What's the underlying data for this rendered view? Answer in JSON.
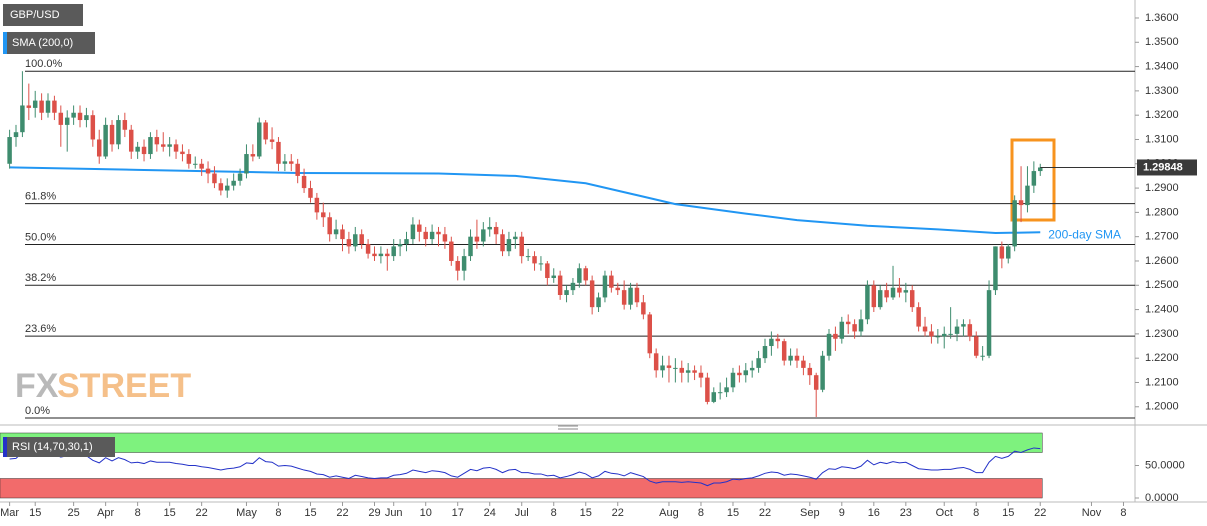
{
  "chart_data": {
    "type": "candlestick",
    "title": "GBP/USD",
    "up_color": "#3e8c6e",
    "down_color": "#dc5048",
    "xlim": [
      -1.5,
      175.8
    ],
    "ylim": [
      1.1925,
      1.3674
    ],
    "yticks": [
      {
        "value": 1.36,
        "label": "1.3600"
      },
      {
        "value": 1.35,
        "label": "1.3500"
      },
      {
        "value": 1.34,
        "label": "1.3400"
      },
      {
        "value": 1.33,
        "label": "1.3300"
      },
      {
        "value": 1.32,
        "label": "1.3200"
      },
      {
        "value": 1.31,
        "label": "1.3100"
      },
      {
        "value": 1.3,
        "label": "1.3000"
      },
      {
        "value": 1.29,
        "label": "1.2900"
      },
      {
        "value": 1.28,
        "label": "1.2800"
      },
      {
        "value": 1.27,
        "label": "1.2700"
      },
      {
        "value": 1.26,
        "label": "1.2600"
      },
      {
        "value": 1.25,
        "label": "1.2500"
      },
      {
        "value": 1.24,
        "label": "1.2400"
      },
      {
        "value": 1.23,
        "label": "1.2300"
      },
      {
        "value": 1.22,
        "label": "1.2200"
      },
      {
        "value": 1.21,
        "label": "1.2100"
      },
      {
        "value": 1.2,
        "label": "1.2000"
      }
    ],
    "xticks": [
      {
        "value": 0,
        "label": "Mar"
      },
      {
        "value": 4,
        "label": "15"
      },
      {
        "value": 10,
        "label": "25"
      },
      {
        "value": 15,
        "label": "Apr"
      },
      {
        "value": 20,
        "label": "8"
      },
      {
        "value": 25,
        "label": "15"
      },
      {
        "value": 30,
        "label": "22"
      },
      {
        "value": 37,
        "label": "May"
      },
      {
        "value": 42,
        "label": "8"
      },
      {
        "value": 47,
        "label": "15"
      },
      {
        "value": 52,
        "label": "22"
      },
      {
        "value": 57,
        "label": "29"
      },
      {
        "value": 60,
        "label": "Jun"
      },
      {
        "value": 65,
        "label": "10"
      },
      {
        "value": 70,
        "label": "17"
      },
      {
        "value": 75,
        "label": "24"
      },
      {
        "value": 80,
        "label": "Jul"
      },
      {
        "value": 85,
        "label": "8"
      },
      {
        "value": 90,
        "label": "15"
      },
      {
        "value": 95,
        "label": "22"
      },
      {
        "value": 103,
        "label": "Aug"
      },
      {
        "value": 108,
        "label": "8"
      },
      {
        "value": 113,
        "label": "15"
      },
      {
        "value": 118,
        "label": "22"
      },
      {
        "value": 125,
        "label": "Sep"
      },
      {
        "value": 130,
        "label": "9"
      },
      {
        "value": 135,
        "label": "16"
      },
      {
        "value": 140,
        "label": "23"
      },
      {
        "value": 146,
        "label": "Oct"
      },
      {
        "value": 151,
        "label": "8"
      },
      {
        "value": 156,
        "label": "15"
      },
      {
        "value": 161,
        "label": "22"
      },
      {
        "value": 169,
        "label": "Nov"
      },
      {
        "value": 174,
        "label": "8"
      }
    ],
    "last_price": 1.29848,
    "grid": false,
    "ohlc": [
      [
        1.3,
        1.314,
        1.298,
        1.311
      ],
      [
        1.311,
        1.316,
        1.307,
        1.313
      ],
      [
        1.313,
        1.3381,
        1.311,
        1.324
      ],
      [
        1.324,
        1.333,
        1.318,
        1.323
      ],
      [
        1.323,
        1.33,
        1.319,
        1.326
      ],
      [
        1.326,
        1.329,
        1.318,
        1.321
      ],
      [
        1.321,
        1.329,
        1.319,
        1.326
      ],
      [
        1.326,
        1.328,
        1.318,
        1.321
      ],
      [
        1.321,
        1.324,
        1.307,
        1.316
      ],
      [
        1.316,
        1.322,
        1.305,
        1.319
      ],
      [
        1.319,
        1.324,
        1.316,
        1.321
      ],
      [
        1.321,
        1.324,
        1.315,
        1.318
      ],
      [
        1.318,
        1.323,
        1.315,
        1.32
      ],
      [
        1.32,
        1.322,
        1.307,
        1.31
      ],
      [
        1.31,
        1.314,
        1.3,
        1.303
      ],
      [
        1.303,
        1.319,
        1.302,
        1.316
      ],
      [
        1.316,
        1.318,
        1.305,
        1.308
      ],
      [
        1.308,
        1.32,
        1.306,
        1.318
      ],
      [
        1.318,
        1.321,
        1.311,
        1.314
      ],
      [
        1.314,
        1.316,
        1.302,
        1.305
      ],
      [
        1.305,
        1.309,
        1.302,
        1.307
      ],
      [
        1.307,
        1.31,
        1.301,
        1.304
      ],
      [
        1.304,
        1.313,
        1.302,
        1.311
      ],
      [
        1.311,
        1.314,
        1.305,
        1.308
      ],
      [
        1.308,
        1.313,
        1.305,
        1.307
      ],
      [
        1.307,
        1.311,
        1.303,
        1.308
      ],
      [
        1.308,
        1.31,
        1.302,
        1.305
      ],
      [
        1.305,
        1.308,
        1.301,
        1.304
      ],
      [
        1.304,
        1.306,
        1.298,
        1.3
      ],
      [
        1.3,
        1.303,
        1.298,
        1.3
      ],
      [
        1.3,
        1.302,
        1.295,
        1.298
      ],
      [
        1.298,
        1.301,
        1.292,
        1.296
      ],
      [
        1.296,
        1.299,
        1.29,
        1.292
      ],
      [
        1.292,
        1.294,
        1.287,
        1.289
      ],
      [
        1.289,
        1.294,
        1.286,
        1.291
      ],
      [
        1.291,
        1.296,
        1.289,
        1.293
      ],
      [
        1.293,
        1.298,
        1.291,
        1.296
      ],
      [
        1.296,
        1.308,
        1.294,
        1.304
      ],
      [
        1.304,
        1.308,
        1.301,
        1.303
      ],
      [
        1.303,
        1.319,
        1.302,
        1.317
      ],
      [
        1.317,
        1.318,
        1.308,
        1.31
      ],
      [
        1.31,
        1.315,
        1.306,
        1.309
      ],
      [
        1.309,
        1.311,
        1.297,
        1.3
      ],
      [
        1.3,
        1.304,
        1.297,
        1.301
      ],
      [
        1.301,
        1.304,
        1.297,
        1.3
      ],
      [
        1.3,
        1.302,
        1.292,
        1.295
      ],
      [
        1.295,
        1.298,
        1.288,
        1.29
      ],
      [
        1.29,
        1.293,
        1.284,
        1.286
      ],
      [
        1.286,
        1.288,
        1.277,
        1.28
      ],
      [
        1.28,
        1.284,
        1.274,
        1.278
      ],
      [
        1.278,
        1.28,
        1.268,
        1.271
      ],
      [
        1.271,
        1.277,
        1.269,
        1.273
      ],
      [
        1.273,
        1.275,
        1.264,
        1.269
      ],
      [
        1.269,
        1.272,
        1.263,
        1.266
      ],
      [
        1.266,
        1.274,
        1.264,
        1.271
      ],
      [
        1.271,
        1.273,
        1.265,
        1.267
      ],
      [
        1.267,
        1.269,
        1.261,
        1.263
      ],
      [
        1.263,
        1.266,
        1.26,
        1.262
      ],
      [
        1.262,
        1.266,
        1.259,
        1.263
      ],
      [
        1.263,
        1.265,
        1.256,
        1.262
      ],
      [
        1.262,
        1.269,
        1.26,
        1.266
      ],
      [
        1.266,
        1.269,
        1.262,
        1.267
      ],
      [
        1.267,
        1.272,
        1.264,
        1.269
      ],
      [
        1.269,
        1.278,
        1.267,
        1.275
      ],
      [
        1.275,
        1.277,
        1.268,
        1.272
      ],
      [
        1.272,
        1.274,
        1.266,
        1.269
      ],
      [
        1.269,
        1.275,
        1.267,
        1.272
      ],
      [
        1.272,
        1.274,
        1.266,
        1.271
      ],
      [
        1.271,
        1.274,
        1.265,
        1.268
      ],
      [
        1.268,
        1.27,
        1.258,
        1.26
      ],
      [
        1.26,
        1.262,
        1.252,
        1.256
      ],
      [
        1.256,
        1.265,
        1.252,
        1.262
      ],
      [
        1.262,
        1.273,
        1.26,
        1.27
      ],
      [
        1.27,
        1.277,
        1.265,
        1.268
      ],
      [
        1.268,
        1.276,
        1.266,
        1.273
      ],
      [
        1.273,
        1.278,
        1.27,
        1.274
      ],
      [
        1.274,
        1.276,
        1.267,
        1.271
      ],
      [
        1.271,
        1.273,
        1.262,
        1.264
      ],
      [
        1.264,
        1.272,
        1.262,
        1.269
      ],
      [
        1.269,
        1.272,
        1.265,
        1.27
      ],
      [
        1.27,
        1.272,
        1.259,
        1.262
      ],
      [
        1.262,
        1.265,
        1.26,
        1.262
      ],
      [
        1.262,
        1.264,
        1.256,
        1.259
      ],
      [
        1.259,
        1.262,
        1.256,
        1.259
      ],
      [
        1.259,
        1.26,
        1.25,
        1.253
      ],
      [
        1.253,
        1.257,
        1.251,
        1.254
      ],
      [
        1.254,
        1.256,
        1.244,
        1.246
      ],
      [
        1.246,
        1.25,
        1.243,
        1.248
      ],
      [
        1.248,
        1.253,
        1.246,
        1.251
      ],
      [
        1.251,
        1.259,
        1.249,
        1.257
      ],
      [
        1.257,
        1.258,
        1.25,
        1.252
      ],
      [
        1.252,
        1.254,
        1.238,
        1.241
      ],
      [
        1.241,
        1.247,
        1.239,
        1.245
      ],
      [
        1.245,
        1.256,
        1.243,
        1.254
      ],
      [
        1.254,
        1.256,
        1.247,
        1.249
      ],
      [
        1.249,
        1.251,
        1.246,
        1.248
      ],
      [
        1.248,
        1.252,
        1.24,
        1.242
      ],
      [
        1.242,
        1.251,
        1.24,
        1.249
      ],
      [
        1.249,
        1.251,
        1.241,
        1.243
      ],
      [
        1.243,
        1.246,
        1.236,
        1.238
      ],
      [
        1.238,
        1.239,
        1.22,
        1.222
      ],
      [
        1.222,
        1.224,
        1.212,
        1.215
      ],
      [
        1.215,
        1.221,
        1.212,
        1.217
      ],
      [
        1.217,
        1.221,
        1.21,
        1.216
      ],
      [
        1.216,
        1.22,
        1.21,
        1.216
      ],
      [
        1.216,
        1.219,
        1.21,
        1.214
      ],
      [
        1.214,
        1.218,
        1.21,
        1.215
      ],
      [
        1.215,
        1.217,
        1.211,
        1.214
      ],
      [
        1.214,
        1.217,
        1.208,
        1.212
      ],
      [
        1.212,
        1.214,
        1.201,
        1.202
      ],
      [
        1.202,
        1.208,
        1.2015,
        1.206
      ],
      [
        1.206,
        1.21,
        1.203,
        1.206
      ],
      [
        1.206,
        1.212,
        1.204,
        1.208
      ],
      [
        1.208,
        1.216,
        1.206,
        1.214
      ],
      [
        1.214,
        1.217,
        1.21,
        1.213
      ],
      [
        1.213,
        1.218,
        1.21,
        1.215
      ],
      [
        1.215,
        1.219,
        1.212,
        1.216
      ],
      [
        1.216,
        1.223,
        1.214,
        1.22
      ],
      [
        1.22,
        1.228,
        1.218,
        1.225
      ],
      [
        1.225,
        1.231,
        1.221,
        1.228
      ],
      [
        1.228,
        1.23,
        1.224,
        1.227
      ],
      [
        1.227,
        1.228,
        1.217,
        1.219
      ],
      [
        1.219,
        1.224,
        1.217,
        1.221
      ],
      [
        1.221,
        1.224,
        1.216,
        1.219
      ],
      [
        1.219,
        1.221,
        1.213,
        1.216
      ],
      [
        1.216,
        1.218,
        1.209,
        1.213
      ],
      [
        1.213,
        1.214,
        1.1958,
        1.207
      ],
      [
        1.207,
        1.223,
        1.206,
        1.221
      ],
      [
        1.221,
        1.232,
        1.219,
        1.23
      ],
      [
        1.23,
        1.233,
        1.223,
        1.228
      ],
      [
        1.228,
        1.237,
        1.226,
        1.235
      ],
      [
        1.235,
        1.238,
        1.23,
        1.234
      ],
      [
        1.234,
        1.236,
        1.228,
        1.231
      ],
      [
        1.231,
        1.24,
        1.229,
        1.236
      ],
      [
        1.236,
        1.252,
        1.234,
        1.25
      ],
      [
        1.25,
        1.252,
        1.239,
        1.241
      ],
      [
        1.241,
        1.25,
        1.24,
        1.248
      ],
      [
        1.248,
        1.251,
        1.243,
        1.245
      ],
      [
        1.245,
        1.258,
        1.244,
        1.249
      ],
      [
        1.249,
        1.253,
        1.245,
        1.247
      ],
      [
        1.247,
        1.251,
        1.243,
        1.248
      ],
      [
        1.248,
        1.25,
        1.239,
        1.241
      ],
      [
        1.241,
        1.243,
        1.231,
        1.233
      ],
      [
        1.233,
        1.237,
        1.229,
        1.231
      ],
      [
        1.231,
        1.234,
        1.226,
        1.229
      ],
      [
        1.229,
        1.232,
        1.226,
        1.229
      ],
      [
        1.229,
        1.233,
        1.224,
        1.23
      ],
      [
        1.23,
        1.241,
        1.228,
        1.23
      ],
      [
        1.23,
        1.236,
        1.227,
        1.233
      ],
      [
        1.233,
        1.236,
        1.229,
        1.234
      ],
      [
        1.234,
        1.236,
        1.227,
        1.229
      ],
      [
        1.229,
        1.231,
        1.22,
        1.221
      ],
      [
        1.221,
        1.225,
        1.219,
        1.221
      ],
      [
        1.221,
        1.252,
        1.22,
        1.248
      ],
      [
        1.248,
        1.266,
        1.246,
        1.266
      ],
      [
        1.266,
        1.268,
        1.257,
        1.261
      ],
      [
        1.261,
        1.267,
        1.259,
        1.266
      ],
      [
        1.266,
        1.287,
        1.264,
        1.285
      ],
      [
        1.285,
        1.299,
        1.276,
        1.283
      ],
      [
        1.283,
        1.299,
        1.28,
        1.291
      ],
      [
        1.291,
        1.301,
        1.288,
        1.297
      ],
      [
        1.297,
        1.3,
        1.295,
        1.29848
      ]
    ],
    "sma": {
      "name": "SMA (200,0)",
      "color": "#2196f3",
      "x": [
        0,
        20,
        45,
        67,
        79,
        90,
        104,
        115,
        123,
        134,
        145,
        154,
        161
      ],
      "values": [
        1.2985,
        1.2975,
        1.2962,
        1.296,
        1.295,
        1.292,
        1.2834,
        1.2795,
        1.2768,
        1.2745,
        1.273,
        1.2715,
        1.2718
      ]
    },
    "sma_annotation": "200-day SMA",
    "fib_levels": [
      {
        "label": "100.0%",
        "value": 1.3381
      },
      {
        "label": "61.8%",
        "value": 1.2836
      },
      {
        "label": "50.0%",
        "value": 1.2668
      },
      {
        "label": "38.2%",
        "value": 1.25
      },
      {
        "label": "23.6%",
        "value": 1.2291
      },
      {
        "label": "0.0%",
        "value": 1.1954
      }
    ],
    "watermark": [
      "FX",
      "STREET"
    ],
    "rsi": {
      "name": "RSI (14,70,30,1)",
      "color": "#2432c8",
      "ylim": [
        0,
        100
      ],
      "yticks": [
        {
          "value": 50,
          "label": "50.0000"
        },
        {
          "value": 0,
          "label": "0.0000"
        }
      ],
      "upper": 70,
      "lower": 30,
      "upper_color": "#7ef27e",
      "lower_color": "#f26b6b",
      "values": [
        60,
        61,
        70,
        69,
        70,
        68,
        70,
        67,
        63,
        65,
        66,
        64,
        65,
        58,
        54,
        62,
        57,
        62,
        59,
        54,
        55,
        53,
        57,
        55,
        55,
        55,
        53,
        52,
        50,
        50,
        48,
        47,
        45,
        43,
        45,
        46,
        48,
        54,
        53,
        62,
        56,
        55,
        49,
        50,
        49,
        46,
        43,
        41,
        37,
        36,
        32,
        34,
        32,
        30,
        35,
        33,
        31,
        30,
        31,
        31,
        35,
        36,
        38,
        43,
        41,
        39,
        42,
        41,
        39,
        34,
        32,
        38,
        44,
        42,
        46,
        47,
        44,
        39,
        43,
        44,
        39,
        39,
        37,
        37,
        34,
        35,
        31,
        33,
        36,
        40,
        37,
        31,
        34,
        41,
        38,
        37,
        34,
        39,
        36,
        33,
        26,
        23,
        25,
        25,
        25,
        24,
        25,
        24,
        23,
        19,
        23,
        23,
        25,
        29,
        28,
        30,
        31,
        34,
        38,
        40,
        39,
        35,
        37,
        36,
        34,
        32,
        29,
        39,
        45,
        44,
        48,
        47,
        45,
        49,
        58,
        51,
        55,
        53,
        56,
        54,
        55,
        50,
        45,
        44,
        43,
        43,
        44,
        44,
        46,
        47,
        44,
        39,
        39,
        55,
        64,
        61,
        64,
        72,
        70,
        74,
        77,
        76
      ]
    }
  }
}
